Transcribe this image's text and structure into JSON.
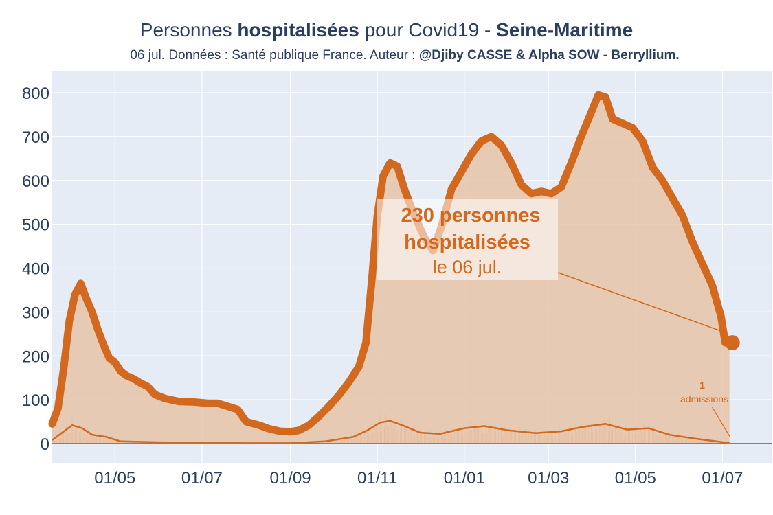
{
  "header": {
    "title_pre": "Personnes ",
    "title_bold": "hospitalisées",
    "title_mid": " pour Covid19 - ",
    "title_region": "Seine-Maritime",
    "subtitle_pre": "06 jul. Données : Santé publique France. Auteur : ",
    "subtitle_bold": "@Djiby CASSE & Alpha SOW - Berryllium."
  },
  "annotation": {
    "count": "230",
    "line1_suffix": " personnes",
    "line2": "hospitalisées",
    "line3": "le 06 jul.",
    "admissions_value": "1",
    "admissions_label": "admissions"
  },
  "colors": {
    "main": "#d2691e",
    "fill": "#e8c4a8",
    "plot_bg": "#e5ecf6",
    "grid": "#ffffff",
    "text": "#2a3f5f"
  },
  "chart_data": {
    "type": "area",
    "title": "Personnes hospitalisées pour Covid19 - Seine-Maritime",
    "xlabel": "",
    "ylabel": "",
    "ylim": [
      0,
      820
    ],
    "yticks": [
      0,
      100,
      200,
      300,
      400,
      500,
      600,
      700,
      800
    ],
    "xticks": [
      {
        "date": "2020-05-01",
        "label": "01/05"
      },
      {
        "date": "2020-07-01",
        "label": "01/07"
      },
      {
        "date": "2020-09-01",
        "label": "01/09"
      },
      {
        "date": "2020-11-01",
        "label": "01/11"
      },
      {
        "date": "2021-01-01",
        "label": "01/01"
      },
      {
        "date": "2021-03-01",
        "label": "01/03"
      },
      {
        "date": "2021-05-01",
        "label": "01/05"
      },
      {
        "date": "2021-07-01",
        "label": "01/07"
      }
    ],
    "xlim": [
      "2020-03-18",
      "2021-08-05"
    ],
    "series": [
      {
        "type": "area",
        "points": [
          [
            "2020-03-18",
            45
          ],
          [
            "2020-03-22",
            80
          ],
          [
            "2020-03-26",
            170
          ],
          [
            "2020-03-30",
            280
          ],
          [
            "2020-04-03",
            340
          ],
          [
            "2020-04-07",
            365
          ],
          [
            "2020-04-11",
            330
          ],
          [
            "2020-04-15",
            300
          ],
          [
            "2020-04-19",
            260
          ],
          [
            "2020-04-23",
            225
          ],
          [
            "2020-04-27",
            195
          ],
          [
            "2020-05-01",
            185
          ],
          [
            "2020-05-05",
            165
          ],
          [
            "2020-05-09",
            155
          ],
          [
            "2020-05-14",
            148
          ],
          [
            "2020-05-19",
            138
          ],
          [
            "2020-05-24",
            130
          ],
          [
            "2020-05-29",
            112
          ],
          [
            "2020-06-05",
            103
          ],
          [
            "2020-06-15",
            96
          ],
          [
            "2020-06-25",
            95
          ],
          [
            "2020-07-05",
            92
          ],
          [
            "2020-07-12",
            92
          ],
          [
            "2020-07-19",
            85
          ],
          [
            "2020-07-26",
            78
          ],
          [
            "2020-08-01",
            50
          ],
          [
            "2020-08-10",
            42
          ],
          [
            "2020-08-17",
            34
          ],
          [
            "2020-08-25",
            28
          ],
          [
            "2020-09-01",
            27
          ],
          [
            "2020-09-07",
            30
          ],
          [
            "2020-09-14",
            42
          ],
          [
            "2020-09-21",
            62
          ],
          [
            "2020-09-28",
            85
          ],
          [
            "2020-10-05",
            110
          ],
          [
            "2020-10-12",
            140
          ],
          [
            "2020-10-19",
            175
          ],
          [
            "2020-10-24",
            230
          ],
          [
            "2020-10-28",
            370
          ],
          [
            "2020-11-01",
            520
          ],
          [
            "2020-11-05",
            610
          ],
          [
            "2020-11-10",
            640
          ],
          [
            "2020-11-15",
            632
          ],
          [
            "2020-11-20",
            580
          ],
          [
            "2020-11-27",
            520
          ],
          [
            "2020-12-04",
            470
          ],
          [
            "2020-12-10",
            440
          ],
          [
            "2020-12-16",
            495
          ],
          [
            "2020-12-23",
            580
          ],
          [
            "2020-12-30",
            620
          ],
          [
            "2021-01-06",
            660
          ],
          [
            "2021-01-13",
            690
          ],
          [
            "2021-01-20",
            700
          ],
          [
            "2021-01-27",
            680
          ],
          [
            "2021-02-03",
            640
          ],
          [
            "2021-02-10",
            590
          ],
          [
            "2021-02-17",
            570
          ],
          [
            "2021-02-24",
            575
          ],
          [
            "2021-03-03",
            570
          ],
          [
            "2021-03-10",
            585
          ],
          [
            "2021-03-17",
            640
          ],
          [
            "2021-03-24",
            700
          ],
          [
            "2021-03-31",
            755
          ],
          [
            "2021-04-05",
            795
          ],
          [
            "2021-04-10",
            790
          ],
          [
            "2021-04-15",
            740
          ],
          [
            "2021-04-22",
            730
          ],
          [
            "2021-04-29",
            720
          ],
          [
            "2021-05-06",
            690
          ],
          [
            "2021-05-13",
            630
          ],
          [
            "2021-05-20",
            600
          ],
          [
            "2021-05-27",
            560
          ],
          [
            "2021-06-03",
            520
          ],
          [
            "2021-06-10",
            460
          ],
          [
            "2021-06-17",
            410
          ],
          [
            "2021-06-24",
            360
          ],
          [
            "2021-06-30",
            290
          ],
          [
            "2021-07-03",
            230
          ],
          [
            "2021-07-06",
            230
          ]
        ]
      },
      {
        "type": "line",
        "points": [
          [
            "2020-03-18",
            8
          ],
          [
            "2020-03-25",
            25
          ],
          [
            "2020-04-01",
            42
          ],
          [
            "2020-04-08",
            35
          ],
          [
            "2020-04-15",
            20
          ],
          [
            "2020-04-25",
            15
          ],
          [
            "2020-05-05",
            5
          ],
          [
            "2020-06-01",
            3
          ],
          [
            "2020-08-01",
            1
          ],
          [
            "2020-09-01",
            1
          ],
          [
            "2020-09-25",
            5
          ],
          [
            "2020-10-15",
            15
          ],
          [
            "2020-10-25",
            30
          ],
          [
            "2020-11-03",
            48
          ],
          [
            "2020-11-10",
            52
          ],
          [
            "2020-11-20",
            40
          ],
          [
            "2020-12-01",
            25
          ],
          [
            "2020-12-15",
            22
          ],
          [
            "2021-01-01",
            35
          ],
          [
            "2021-01-15",
            40
          ],
          [
            "2021-02-01",
            30
          ],
          [
            "2021-02-20",
            24
          ],
          [
            "2021-03-10",
            28
          ],
          [
            "2021-03-25",
            38
          ],
          [
            "2021-04-10",
            45
          ],
          [
            "2021-04-25",
            32
          ],
          [
            "2021-05-10",
            35
          ],
          [
            "2021-05-25",
            20
          ],
          [
            "2021-06-10",
            12
          ],
          [
            "2021-06-25",
            6
          ],
          [
            "2021-07-06",
            1
          ]
        ]
      }
    ],
    "last_point": {
      "date": "2021-07-06",
      "value": 230
    },
    "last_admissions": {
      "date": "2021-07-06",
      "value": 1
    },
    "grid": true,
    "legend": "none"
  }
}
